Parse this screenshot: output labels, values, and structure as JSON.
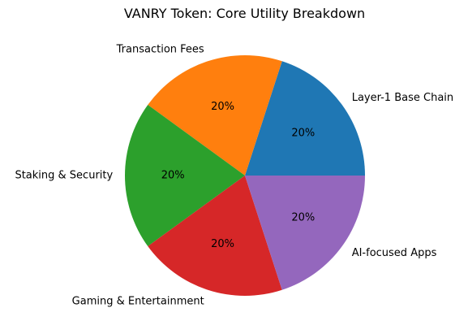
{
  "chart_data": {
    "type": "pie",
    "title": "VANRY Token: Core Utility Breakdown",
    "slices": [
      {
        "label": "Layer-1 Base Chain",
        "value": 20,
        "pct_label": "20%",
        "color": "#1f77b4"
      },
      {
        "label": "Transaction Fees",
        "value": 20,
        "pct_label": "20%",
        "color": "#ff7f0e"
      },
      {
        "label": "Staking & Security",
        "value": 20,
        "pct_label": "20%",
        "color": "#2ca02c"
      },
      {
        "label": "Gaming & Entertainment",
        "value": 20,
        "pct_label": "20%",
        "color": "#d62728"
      },
      {
        "label": "AI-focused Apps",
        "value": 20,
        "pct_label": "20%",
        "color": "#9467bd"
      }
    ],
    "start_angle_deg": 0,
    "direction": "counterclockwise",
    "legend": "none"
  }
}
